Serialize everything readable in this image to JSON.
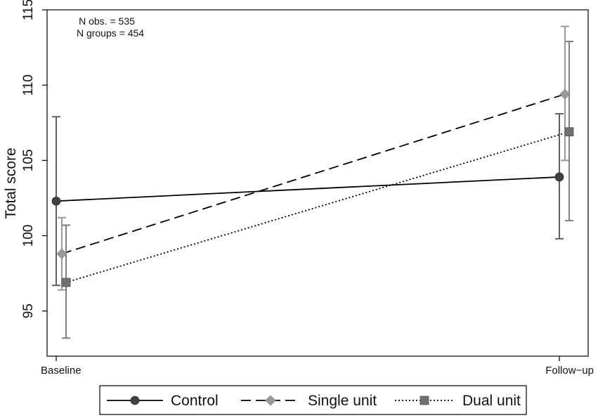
{
  "chart_data": {
    "type": "line",
    "xlabel": "",
    "ylabel": "Total score",
    "categories": [
      "Baseline",
      "Follow−up"
    ],
    "ylim": [
      92,
      115
    ],
    "yticks": [
      95,
      100,
      105,
      110,
      115
    ],
    "annotations": [
      "N obs. = 535",
      "N groups = 454"
    ],
    "grid": false,
    "legend_position": "bottom",
    "series": [
      {
        "name": "Control",
        "values": [
          102.3,
          103.9
        ],
        "ci_low": [
          96.7,
          99.8
        ],
        "ci_high": [
          107.9,
          108.1
        ],
        "line_style": "solid",
        "marker": "circle",
        "color": "#404040",
        "error_color": "#606060"
      },
      {
        "name": "Single unit",
        "values": [
          98.8,
          109.4
        ],
        "ci_low": [
          96.4,
          105.0
        ],
        "ci_high": [
          101.2,
          113.9
        ],
        "line_style": "dashed",
        "marker": "diamond",
        "color": "#999999",
        "error_color": "#999999"
      },
      {
        "name": "Dual unit",
        "values": [
          96.9,
          106.9
        ],
        "ci_low": [
          93.2,
          101.0
        ],
        "ci_high": [
          100.7,
          112.9
        ],
        "line_style": "dotted",
        "marker": "square",
        "color": "#707070",
        "error_color": "#808080"
      }
    ]
  }
}
